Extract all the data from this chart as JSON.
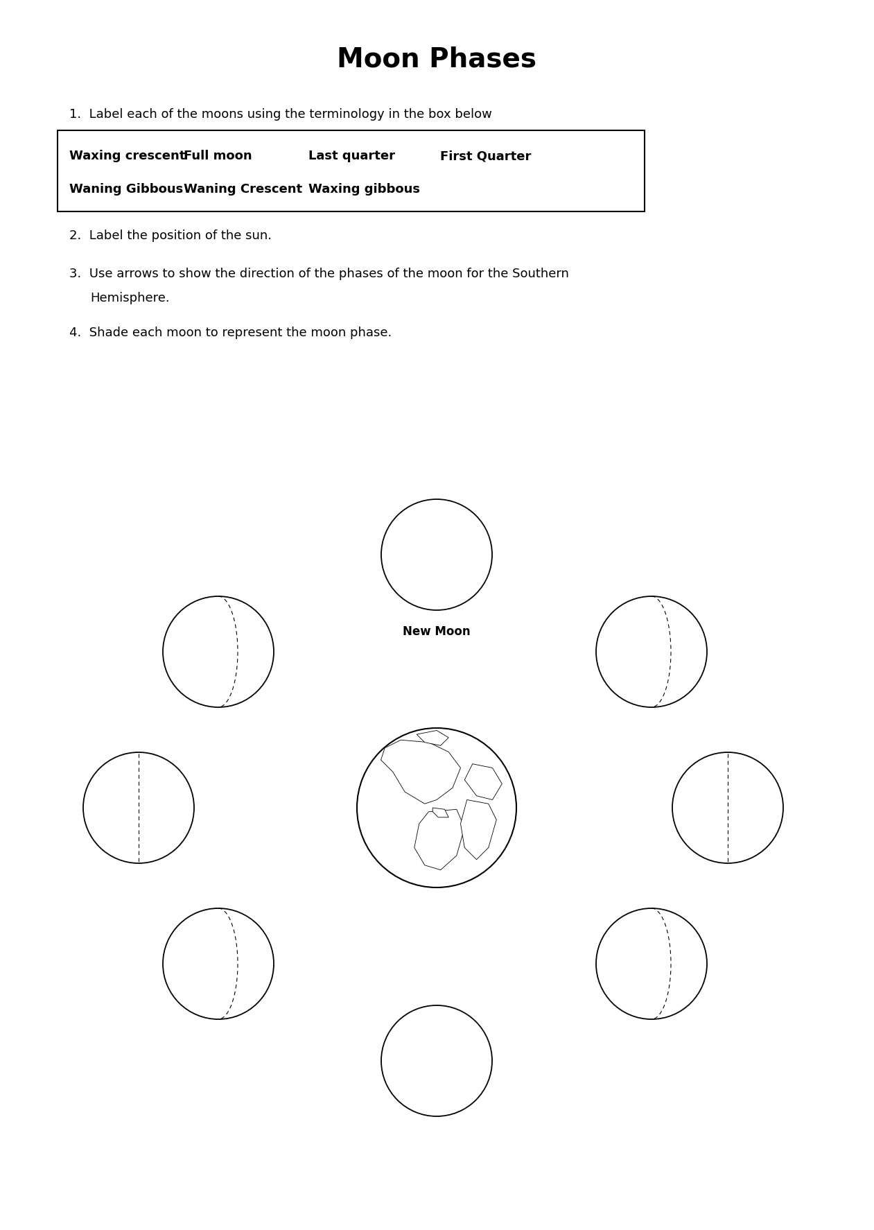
{
  "title": "Moon Phases",
  "inst1": "Label each of the moons using the terminology in the box below",
  "inst2": "Label the position of the sun.",
  "inst3a": "Use arrows to show the direction of the phases of the moon for the Southern",
  "inst3b": "Hemisphere.",
  "inst4": "Shade each moon to represent the moon phase.",
  "terms_row1": [
    "Waxing crescent",
    "Full moon",
    "Last quarter",
    "First Quarter"
  ],
  "terms_row2": [
    "Waning Gibbous",
    "Waning Crescent",
    "Waxing gibbous"
  ],
  "new_moon_label": "New Moon",
  "bg": "#ffffff",
  "fg": "#000000",
  "title_fs": 28,
  "body_fs": 13,
  "term_fs": 13
}
